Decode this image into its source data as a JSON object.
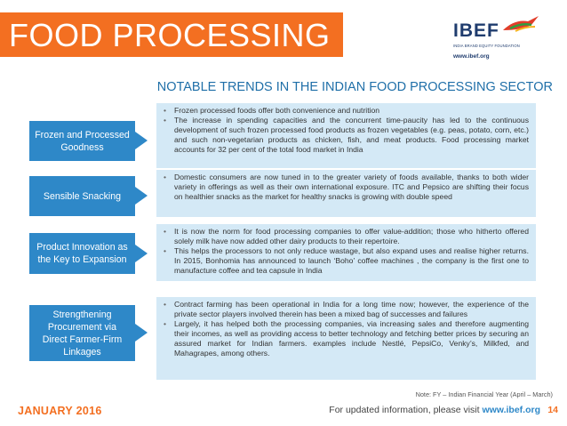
{
  "header": {
    "title": "FOOD PROCESSING",
    "logo_text": "IBEF",
    "logo_subtext": "INDIA BRAND EQUITY FOUNDATION",
    "logo_url": "www.ibef.org"
  },
  "subtitle": "NOTABLE TRENDS IN THE INDIAN FOOD PROCESSING SECTOR",
  "rows": [
    {
      "label": "Frozen and Processed Goodness",
      "bullets": [
        "Frozen processed foods offer both convenience and nutrition",
        "The increase in spending capacities and the concurrent time-paucity has led to the continuous development of such frozen processed food products as frozen vegetables (e.g. peas, potato, corn, etc.) and such non-vegetarian products as chicken, fish, and meat products. Food processing market accounts for 32 per cent of the total food market in India"
      ]
    },
    {
      "label": "Sensible Snacking",
      "bullets": [
        "Domestic consumers are now tuned in to the greater variety of foods available, thanks to both wider variety in offerings as well as their own international exposure. ITC and Pepsico are shifting their focus on healthier snacks as the market for healthy snacks is growing with double speed"
      ]
    },
    {
      "label": "Product Innovation as the Key to Expansion",
      "bullets": [
        "It is now the norm for food processing companies to offer value-addition; those who hitherto offered solely milk have now added other dairy products to their repertoire.",
        "This helps the processors to not only reduce wastage, but also expand uses and realise higher returns. In 2015, Bonhomia has announced to launch ‘Boho’ coffee machines , the company is the first one to manufacture coffee and tea capsule in India"
      ]
    },
    {
      "label": "Strengthening Procurement via Direct Farmer-Firm Linkages",
      "bullets": [
        "Contract farming has been operational in India for a long time now; however, the experience of the private sector players involved therein has been a mixed bag of successes and failures",
        "Largely, it has helped both the processing companies, via increasing sales and therefore augmenting their incomes, as well as providing access to better technology and fetching better prices by securing an assured market for Indian farmers. examples include Nestlé, PepsiCo, Venky’s, Milkfed, and Mahagrapes, among others."
      ]
    }
  ],
  "note": "Note: FY – Indian Financial Year (April – March)",
  "footer": {
    "date": "JANUARY 2016",
    "info_prefix": "For updated information, please visit ",
    "info_url": "www.ibef.org",
    "page_number": "14"
  },
  "colors": {
    "accent_orange": "#f36f21",
    "label_blue": "#2e88c8",
    "desc_bg": "#d4e9f6",
    "subtitle_blue": "#1f6fa8"
  }
}
